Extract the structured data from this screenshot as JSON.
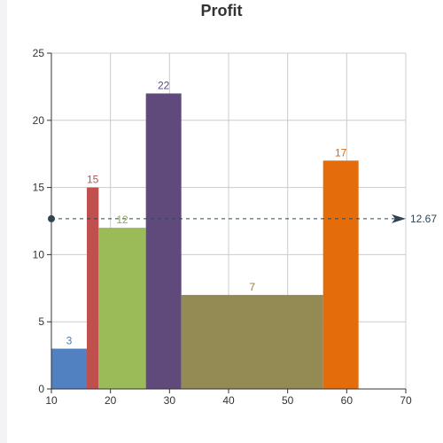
{
  "chart_data": {
    "type": "bar",
    "title": "Profit",
    "xlim": [
      10,
      70
    ],
    "ylim": [
      0,
      25
    ],
    "xticks": [
      10,
      20,
      30,
      40,
      50,
      60,
      70
    ],
    "yticks": [
      0,
      5,
      10,
      15,
      20,
      25
    ],
    "grid": true,
    "bars": [
      {
        "x_start": 10,
        "x_end": 16,
        "value": 3,
        "label": "3",
        "color": "#5181c0",
        "label_color": "#4a7bbf"
      },
      {
        "x_start": 16,
        "x_end": 18,
        "value": 15,
        "label": "15",
        "color": "#c0504d",
        "label_color": "#c0504d"
      },
      {
        "x_start": 18,
        "x_end": 26,
        "value": 12,
        "label": "12",
        "color": "#9bbb59",
        "label_color": "#8eb04c"
      },
      {
        "x_start": 26,
        "x_end": 32,
        "value": 22,
        "label": "22",
        "color": "#604a7b",
        "label_color": "#604a7b"
      },
      {
        "x_start": 32,
        "x_end": 56,
        "value": 7,
        "label": "7",
        "color": "#948a54",
        "label_color": "#8a7f45"
      },
      {
        "x_start": 56,
        "x_end": 62,
        "value": 17,
        "label": "17",
        "color": "#e46c0a",
        "label_color": "#d9660a"
      }
    ],
    "average_line": {
      "value": 12.67,
      "label": "12.67",
      "color": "#2f4554"
    }
  }
}
